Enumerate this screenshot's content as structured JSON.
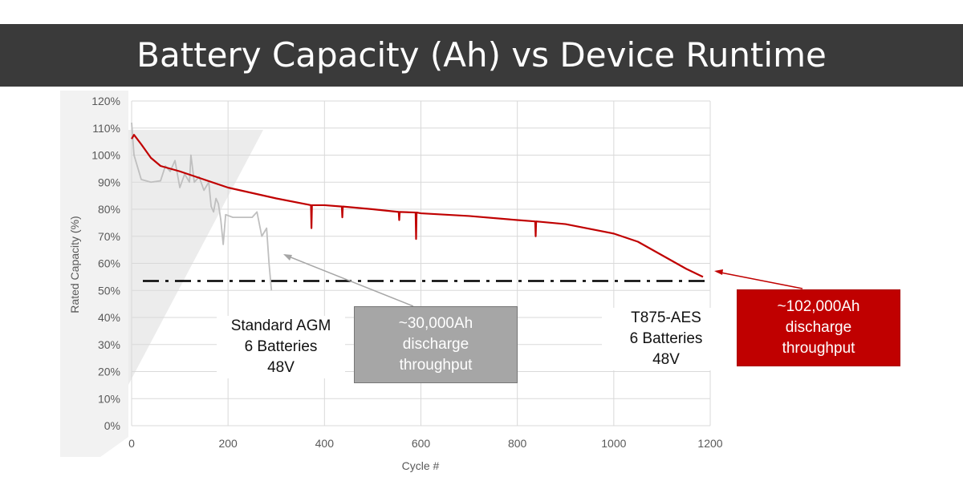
{
  "title": "Battery Capacity (Ah) vs Device Runtime",
  "chart_data": {
    "type": "line",
    "title": "Battery Capacity (Ah) vs Device Runtime",
    "xlabel": "Cycle #",
    "ylabel": "Rated Capacity (%)",
    "xlim": [
      0,
      1200
    ],
    "ylim": [
      0,
      120
    ],
    "xticks": [
      "0",
      "200",
      "400",
      "600",
      "800",
      "1000",
      "1200"
    ],
    "yticks": [
      "0%",
      "10%",
      "20%",
      "30%",
      "40%",
      "50%",
      "60%",
      "70%",
      "80%",
      "90%",
      "100%",
      "110%",
      "120%"
    ],
    "grid": true,
    "series": [
      {
        "color": "#c00000",
        "points": [
          [
            0,
            106
          ],
          [
            5,
            107.5
          ],
          [
            20,
            104
          ],
          [
            40,
            99
          ],
          [
            60,
            96
          ],
          [
            100,
            94
          ],
          [
            150,
            91
          ],
          [
            200,
            88
          ],
          [
            250,
            86
          ],
          [
            300,
            84
          ],
          [
            372,
            81.5
          ],
          [
            373,
            73
          ],
          [
            374,
            81.5
          ],
          [
            400,
            81.5
          ],
          [
            436,
            81
          ],
          [
            437,
            77
          ],
          [
            438,
            81
          ],
          [
            500,
            80
          ],
          [
            554,
            79
          ],
          [
            555,
            76
          ],
          [
            556,
            79
          ],
          [
            589,
            78.8
          ],
          [
            590,
            69
          ],
          [
            591,
            78.8
          ],
          [
            600,
            78.5
          ],
          [
            700,
            77.5
          ],
          [
            800,
            76
          ],
          [
            837,
            75.5
          ],
          [
            838,
            70
          ],
          [
            839,
            75.5
          ],
          [
            900,
            74.5
          ],
          [
            1000,
            71
          ],
          [
            1050,
            68
          ],
          [
            1100,
            63
          ],
          [
            1150,
            58
          ],
          [
            1185,
            55
          ]
        ]
      },
      {
        "color": "#bfbfbf",
        "points": [
          [
            0,
            112
          ],
          [
            5,
            100
          ],
          [
            10,
            97
          ],
          [
            20,
            91
          ],
          [
            40,
            90
          ],
          [
            60,
            90.5
          ],
          [
            70,
            96
          ],
          [
            80,
            94
          ],
          [
            90,
            98
          ],
          [
            100,
            88
          ],
          [
            110,
            93
          ],
          [
            120,
            90
          ],
          [
            123,
            100
          ],
          [
            130,
            90
          ],
          [
            140,
            92
          ],
          [
            150,
            87
          ],
          [
            160,
            90
          ],
          [
            165,
            81
          ],
          [
            170,
            79
          ],
          [
            175,
            84
          ],
          [
            180,
            82
          ],
          [
            185,
            76
          ],
          [
            190,
            67
          ],
          [
            195,
            78
          ],
          [
            210,
            77
          ],
          [
            250,
            77
          ],
          [
            260,
            79
          ],
          [
            270,
            70
          ],
          [
            280,
            73
          ],
          [
            285,
            60
          ],
          [
            290,
            50
          ]
        ]
      }
    ],
    "threshold": {
      "value": 53.5,
      "style": "dash-dot",
      "color": "#000000"
    },
    "annotations": {
      "agm_label": [
        "Standard AGM",
        "6 Batteries",
        "48V"
      ],
      "agm_box": [
        "~30,000Ah",
        "discharge",
        "throughput"
      ],
      "agm_box_color": "#a6a6a6",
      "t875_label": [
        "T875-AES",
        "6 Batteries",
        "48V"
      ],
      "t875_box": [
        "~102,000Ah",
        "discharge",
        "throughput"
      ],
      "t875_box_color": "#c00000"
    }
  }
}
